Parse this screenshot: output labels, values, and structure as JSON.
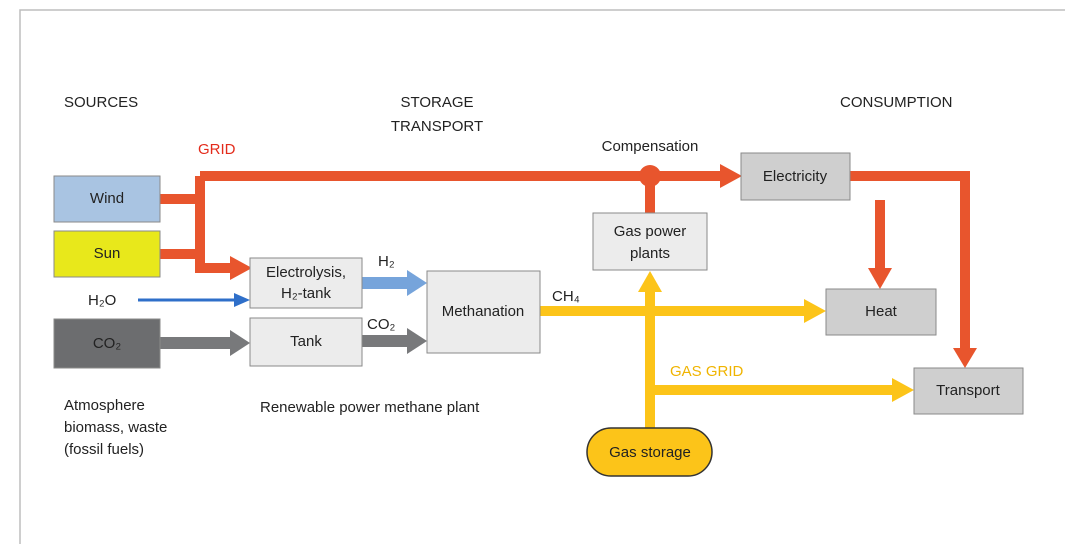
{
  "headings": {
    "sources": "SOURCES",
    "storage": [
      "STORAGE",
      "TRANSPORT"
    ],
    "consumption": "CONSUMPTION"
  },
  "flow_labels": {
    "grid": "GRID",
    "compensation": "Compensation",
    "h2": "H₂",
    "co2": "CO₂",
    "ch4": "CH₄",
    "gas_grid": "GAS GRID",
    "h2o": "H₂O"
  },
  "nodes": {
    "wind": "Wind",
    "sun": "Sun",
    "co2": "CO₂",
    "electrolysis": [
      "Electrolysis,",
      "H₂-tank"
    ],
    "tank": "Tank",
    "methanation": "Methanation",
    "gas_power_plants": [
      "Gas power",
      "plants"
    ],
    "electricity": "Electricity",
    "heat": "Heat",
    "transport": "Transport",
    "gas_storage": "Gas storage"
  },
  "notes": {
    "sources": [
      "Atmosphere",
      "biomass, waste",
      "(fossil fuels)"
    ],
    "plant": "Renewable power methane plant"
  }
}
